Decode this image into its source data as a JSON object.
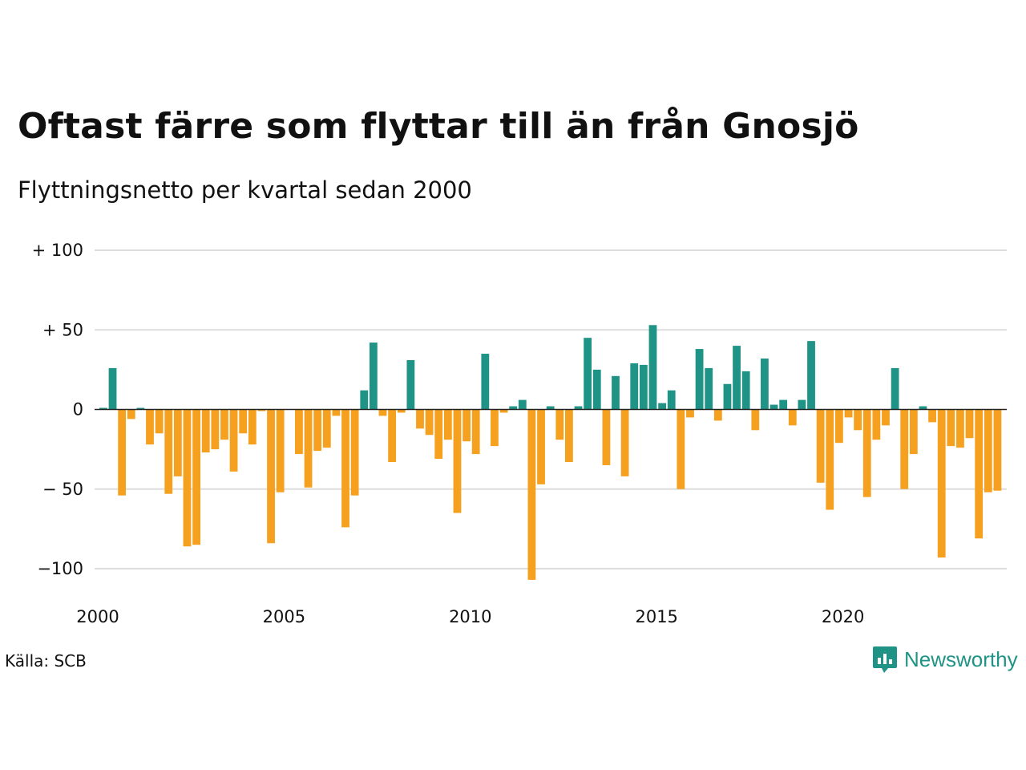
{
  "title": "Oftast färre som flyttar till än från Gnosjö",
  "subtitle": "Flyttningsnetto per kvartal sedan 2000",
  "source": "Källa: SCB",
  "brand": {
    "name": "Newsworthy",
    "icon": "newsworthy-logo-icon"
  },
  "colors": {
    "positive": "#1f9486",
    "negative": "#f5a01e",
    "grid": "#dddddd",
    "zero": "#222222"
  },
  "chart_data": {
    "type": "bar",
    "x_start": "2000 Q1",
    "x_ticks": [
      "2000",
      "2005",
      "2010",
      "2015",
      "2020"
    ],
    "y_ticks": [
      {
        "value": 100,
        "label": "+ 100"
      },
      {
        "value": 50,
        "label": "+  50"
      },
      {
        "value": 0,
        "label": "0"
      },
      {
        "value": -50,
        "label": "− 50"
      },
      {
        "value": -100,
        "label": "−100"
      }
    ],
    "ylim": [
      -107,
      100
    ],
    "grid": true,
    "values": [
      1,
      26,
      -54,
      -6,
      1,
      -22,
      -15,
      -53,
      -42,
      -86,
      -85,
      -27,
      -25,
      -19,
      -39,
      -15,
      -22,
      -1,
      -84,
      -52,
      0,
      -28,
      -49,
      -26,
      -24,
      -4,
      -74,
      -54,
      12,
      42,
      -4,
      -33,
      -2,
      31,
      -12,
      -16,
      -31,
      -19,
      -65,
      -20,
      -28,
      35,
      -23,
      -2,
      2,
      6,
      -107,
      -47,
      2,
      -19,
      -33,
      2,
      45,
      25,
      -35,
      21,
      -42,
      29,
      28,
      53,
      4,
      12,
      -50,
      -5,
      38,
      26,
      -7,
      16,
      40,
      24,
      -13,
      32,
      3,
      6,
      -10,
      6,
      43,
      -46,
      -63,
      -21,
      -5,
      -13,
      -55,
      -19,
      -10,
      26,
      -50,
      -28,
      2,
      -8,
      -93,
      -23,
      -24,
      -18,
      -81,
      -52,
      -51
    ]
  }
}
